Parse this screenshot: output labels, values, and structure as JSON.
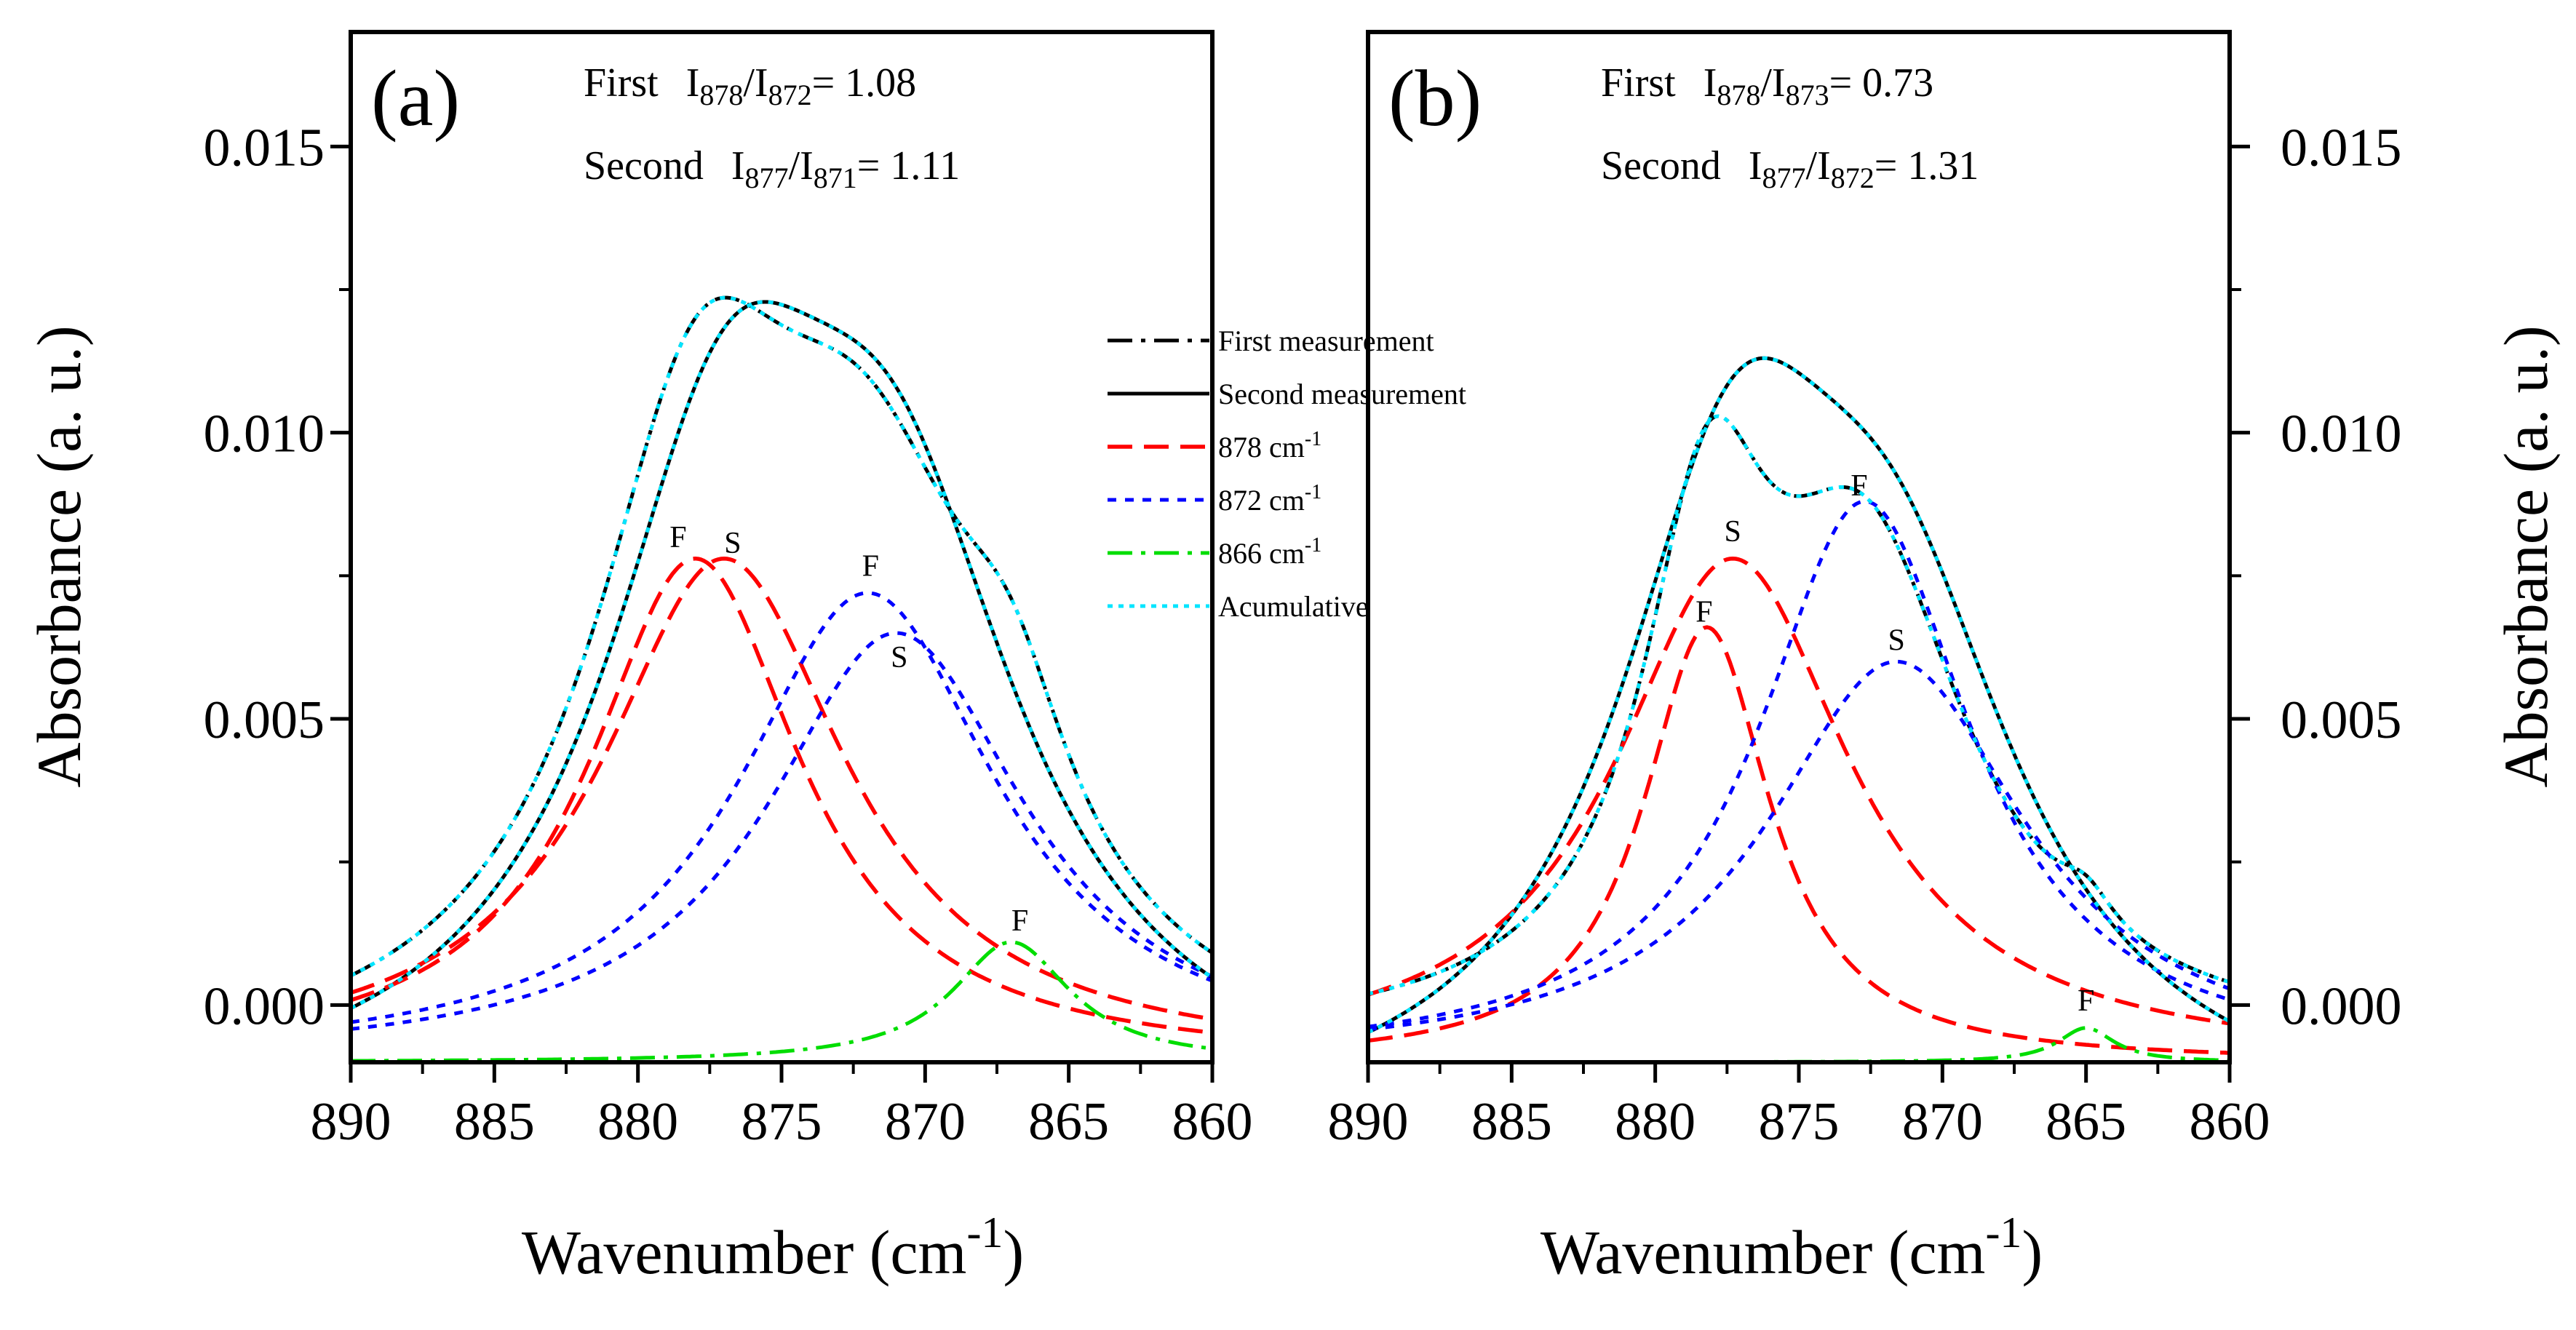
{
  "chart_data": [
    {
      "type": "line",
      "panel_label": "(a)",
      "xlabel": "Wavenumber (cm-1)",
      "ylabel": "Absorbance (a. u.)",
      "xlim": [
        890,
        860
      ],
      "ylim": [
        -0.001,
        0.017
      ],
      "x_ticks": [
        "890",
        "885",
        "880",
        "875",
        "870",
        "865",
        "860"
      ],
      "y_ticks": [
        "0.000",
        "0.005",
        "0.010",
        "0.015"
      ],
      "annotations": {
        "first": {
          "prefix": "First",
          "i1": "I",
          "s1": "878",
          "slash": "/I",
          "s2": "872",
          "value": "= 1.08"
        },
        "second": {
          "prefix": "Second",
          "i1": "I",
          "s1": "877",
          "slash": "/I",
          "s2": "871",
          "value": "= 1.11"
        }
      },
      "peak_labels": [
        {
          "text": "F",
          "x": 878.6,
          "y": 0.008
        },
        {
          "text": "S",
          "x": 876.7,
          "y": 0.0079
        },
        {
          "text": "F",
          "x": 871.9,
          "y": 0.0075
        },
        {
          "text": "S",
          "x": 870.9,
          "y": 0.0059
        },
        {
          "text": "F",
          "x": 866.7,
          "y": 0.0013
        }
      ],
      "series": [
        {
          "name": "First measurement",
          "style": "first",
          "baseline": -0.0014,
          "peaks": [
            [
              878.0,
              0.0094,
              4.5
            ],
            [
              872.0,
              0.0085,
              5.5
            ],
            [
              867.0,
              0.0025,
              2.5
            ]
          ]
        },
        {
          "name": "Second measurement",
          "style": "second",
          "baseline": -0.0021,
          "peaks": [
            [
              877.0,
              0.01,
              5.2
            ],
            [
              871.0,
              0.0086,
              5.5
            ]
          ]
        },
        {
          "name": "878 cm-1 (F)",
          "style": "r878",
          "baseline": -0.001,
          "peaks": [
            [
              878.0,
              0.0088,
              4.5
            ]
          ]
        },
        {
          "name": "878 cm-1 (S)",
          "style": "r878",
          "baseline": -0.001,
          "peaks": [
            [
              877.0,
              0.0088,
              5.2
            ]
          ]
        },
        {
          "name": "872 cm-1 (F)",
          "style": "b872",
          "baseline": -0.001,
          "peaks": [
            [
              872.0,
              0.0082,
              5.5
            ]
          ]
        },
        {
          "name": "872 cm-1 (S)",
          "style": "b872",
          "baseline": -0.001,
          "peaks": [
            [
              871.0,
              0.0075,
              5.5
            ]
          ]
        },
        {
          "name": "866 cm-1 (F)",
          "style": "g866",
          "baseline": -0.001,
          "peaks": [
            [
              867.0,
              0.0021,
              2.5
            ]
          ]
        },
        {
          "name": "Acumulative (F)",
          "style": "cum",
          "baseline": -0.0014,
          "peaks": [
            [
              878.0,
              0.0094,
              4.5
            ],
            [
              872.0,
              0.0085,
              5.5
            ],
            [
              867.0,
              0.0025,
              2.5
            ]
          ]
        },
        {
          "name": "Acumulative (S)",
          "style": "cum",
          "baseline": -0.0021,
          "peaks": [
            [
              877.0,
              0.01,
              5.2
            ],
            [
              871.0,
              0.0086,
              5.5
            ]
          ]
        }
      ]
    },
    {
      "type": "line",
      "panel_label": "(b)",
      "xlabel": "Wavenumber (cm-1)",
      "ylabel": "Absorbance (a. u.)",
      "xlim": [
        890,
        860
      ],
      "ylim": [
        -0.001,
        0.017
      ],
      "x_ticks": [
        "890",
        "885",
        "880",
        "875",
        "870",
        "865",
        "860"
      ],
      "y_ticks": [
        "0.000",
        "0.005",
        "0.010",
        "0.015"
      ],
      "annotations": {
        "first": {
          "prefix": "First",
          "i1": "I",
          "s1": "878",
          "slash": "/I",
          "s2": "873",
          "value": "= 0.73"
        },
        "second": {
          "prefix": "Second",
          "i1": "I",
          "s1": "877",
          "slash": "/I",
          "s2": "872",
          "value": "= 1.31"
        }
      },
      "peak_labels": [
        {
          "text": "S",
          "x": 877.3,
          "y": 0.0081
        },
        {
          "text": "F",
          "x": 878.3,
          "y": 0.0067
        },
        {
          "text": "F",
          "x": 872.9,
          "y": 0.0089
        },
        {
          "text": "S",
          "x": 871.6,
          "y": 0.0062
        },
        {
          "text": "F",
          "x": 865.0,
          "y": -0.0001
        }
      ],
      "series": [
        {
          "name": "First measurement",
          "style": "first",
          "baseline": -0.0007,
          "peaks": [
            [
              878.2,
              0.0076,
              2.7
            ],
            [
              872.7,
              0.0081,
              4.5
            ],
            [
              865.0,
              0.0006,
              1.2
            ]
          ]
        },
        {
          "name": "Second measurement",
          "style": "second",
          "baseline": -0.0024,
          "peaks": [
            [
              877.3,
              0.0098,
              5.0
            ],
            [
              871.6,
              0.0074,
              5.5
            ]
          ]
        },
        {
          "name": "878 cm-1 (F)",
          "style": "r878",
          "baseline": -0.001,
          "peaks": [
            [
              878.2,
              0.0076,
              2.7
            ]
          ]
        },
        {
          "name": "878 cm-1 (S)",
          "style": "r878",
          "baseline": -0.001,
          "peaks": [
            [
              877.3,
              0.0088,
              5.0
            ]
          ]
        },
        {
          "name": "872 cm-1 (F)",
          "style": "b872",
          "baseline": -0.001,
          "peaks": [
            [
              872.7,
              0.0098,
              4.5
            ]
          ]
        },
        {
          "name": "872 cm-1 (S)",
          "style": "b872",
          "baseline": -0.001,
          "peaks": [
            [
              871.6,
              0.007,
              5.5
            ]
          ]
        },
        {
          "name": "866 cm-1 (F)",
          "style": "g866",
          "baseline": -0.001,
          "peaks": [
            [
              865.0,
              0.0006,
              1.2
            ]
          ]
        },
        {
          "name": "Acumulative (F)",
          "style": "cum",
          "baseline": -0.0007,
          "peaks": [
            [
              878.2,
              0.0076,
              2.7
            ],
            [
              872.7,
              0.0081,
              4.5
            ],
            [
              865.0,
              0.0006,
              1.2
            ]
          ]
        },
        {
          "name": "Acumulative (S)",
          "style": "cum",
          "baseline": -0.0024,
          "peaks": [
            [
              877.3,
              0.0098,
              5.0
            ],
            [
              871.6,
              0.0074,
              5.5
            ]
          ]
        }
      ]
    }
  ],
  "legend": {
    "items": [
      {
        "label": "First measurement",
        "style": "first"
      },
      {
        "label": "Second measurement",
        "style": "second"
      },
      {
        "label": "878 cm",
        "sup": "-1",
        "style": "r878"
      },
      {
        "label": "872 cm",
        "sup": "-1",
        "style": "b872"
      },
      {
        "label": "866 cm",
        "sup": "-1",
        "style": "g866"
      },
      {
        "label": "Acumulative",
        "style": "cum"
      }
    ]
  },
  "styles": {
    "first": {
      "color": "#000000",
      "width": 5,
      "dash": "34 12 6 12"
    },
    "second": {
      "color": "#000000",
      "width": 5,
      "dash": ""
    },
    "r878": {
      "color": "#ff0000",
      "width": 5.5,
      "dash": "34 16"
    },
    "b872": {
      "color": "#0000ff",
      "width": 5,
      "dash": "12 12"
    },
    "g866": {
      "color": "#00dd00",
      "width": 5,
      "dash": "34 12 6 12"
    },
    "cum": {
      "color": "#00e5ff",
      "width": 5,
      "dash": "7 8"
    }
  },
  "axis_text": {
    "xlabel_main": "Wavenumber (cm",
    "xlabel_sup": "-1",
    "xlabel_close": ")",
    "ylabel": "Absorbance (a. u.)"
  }
}
